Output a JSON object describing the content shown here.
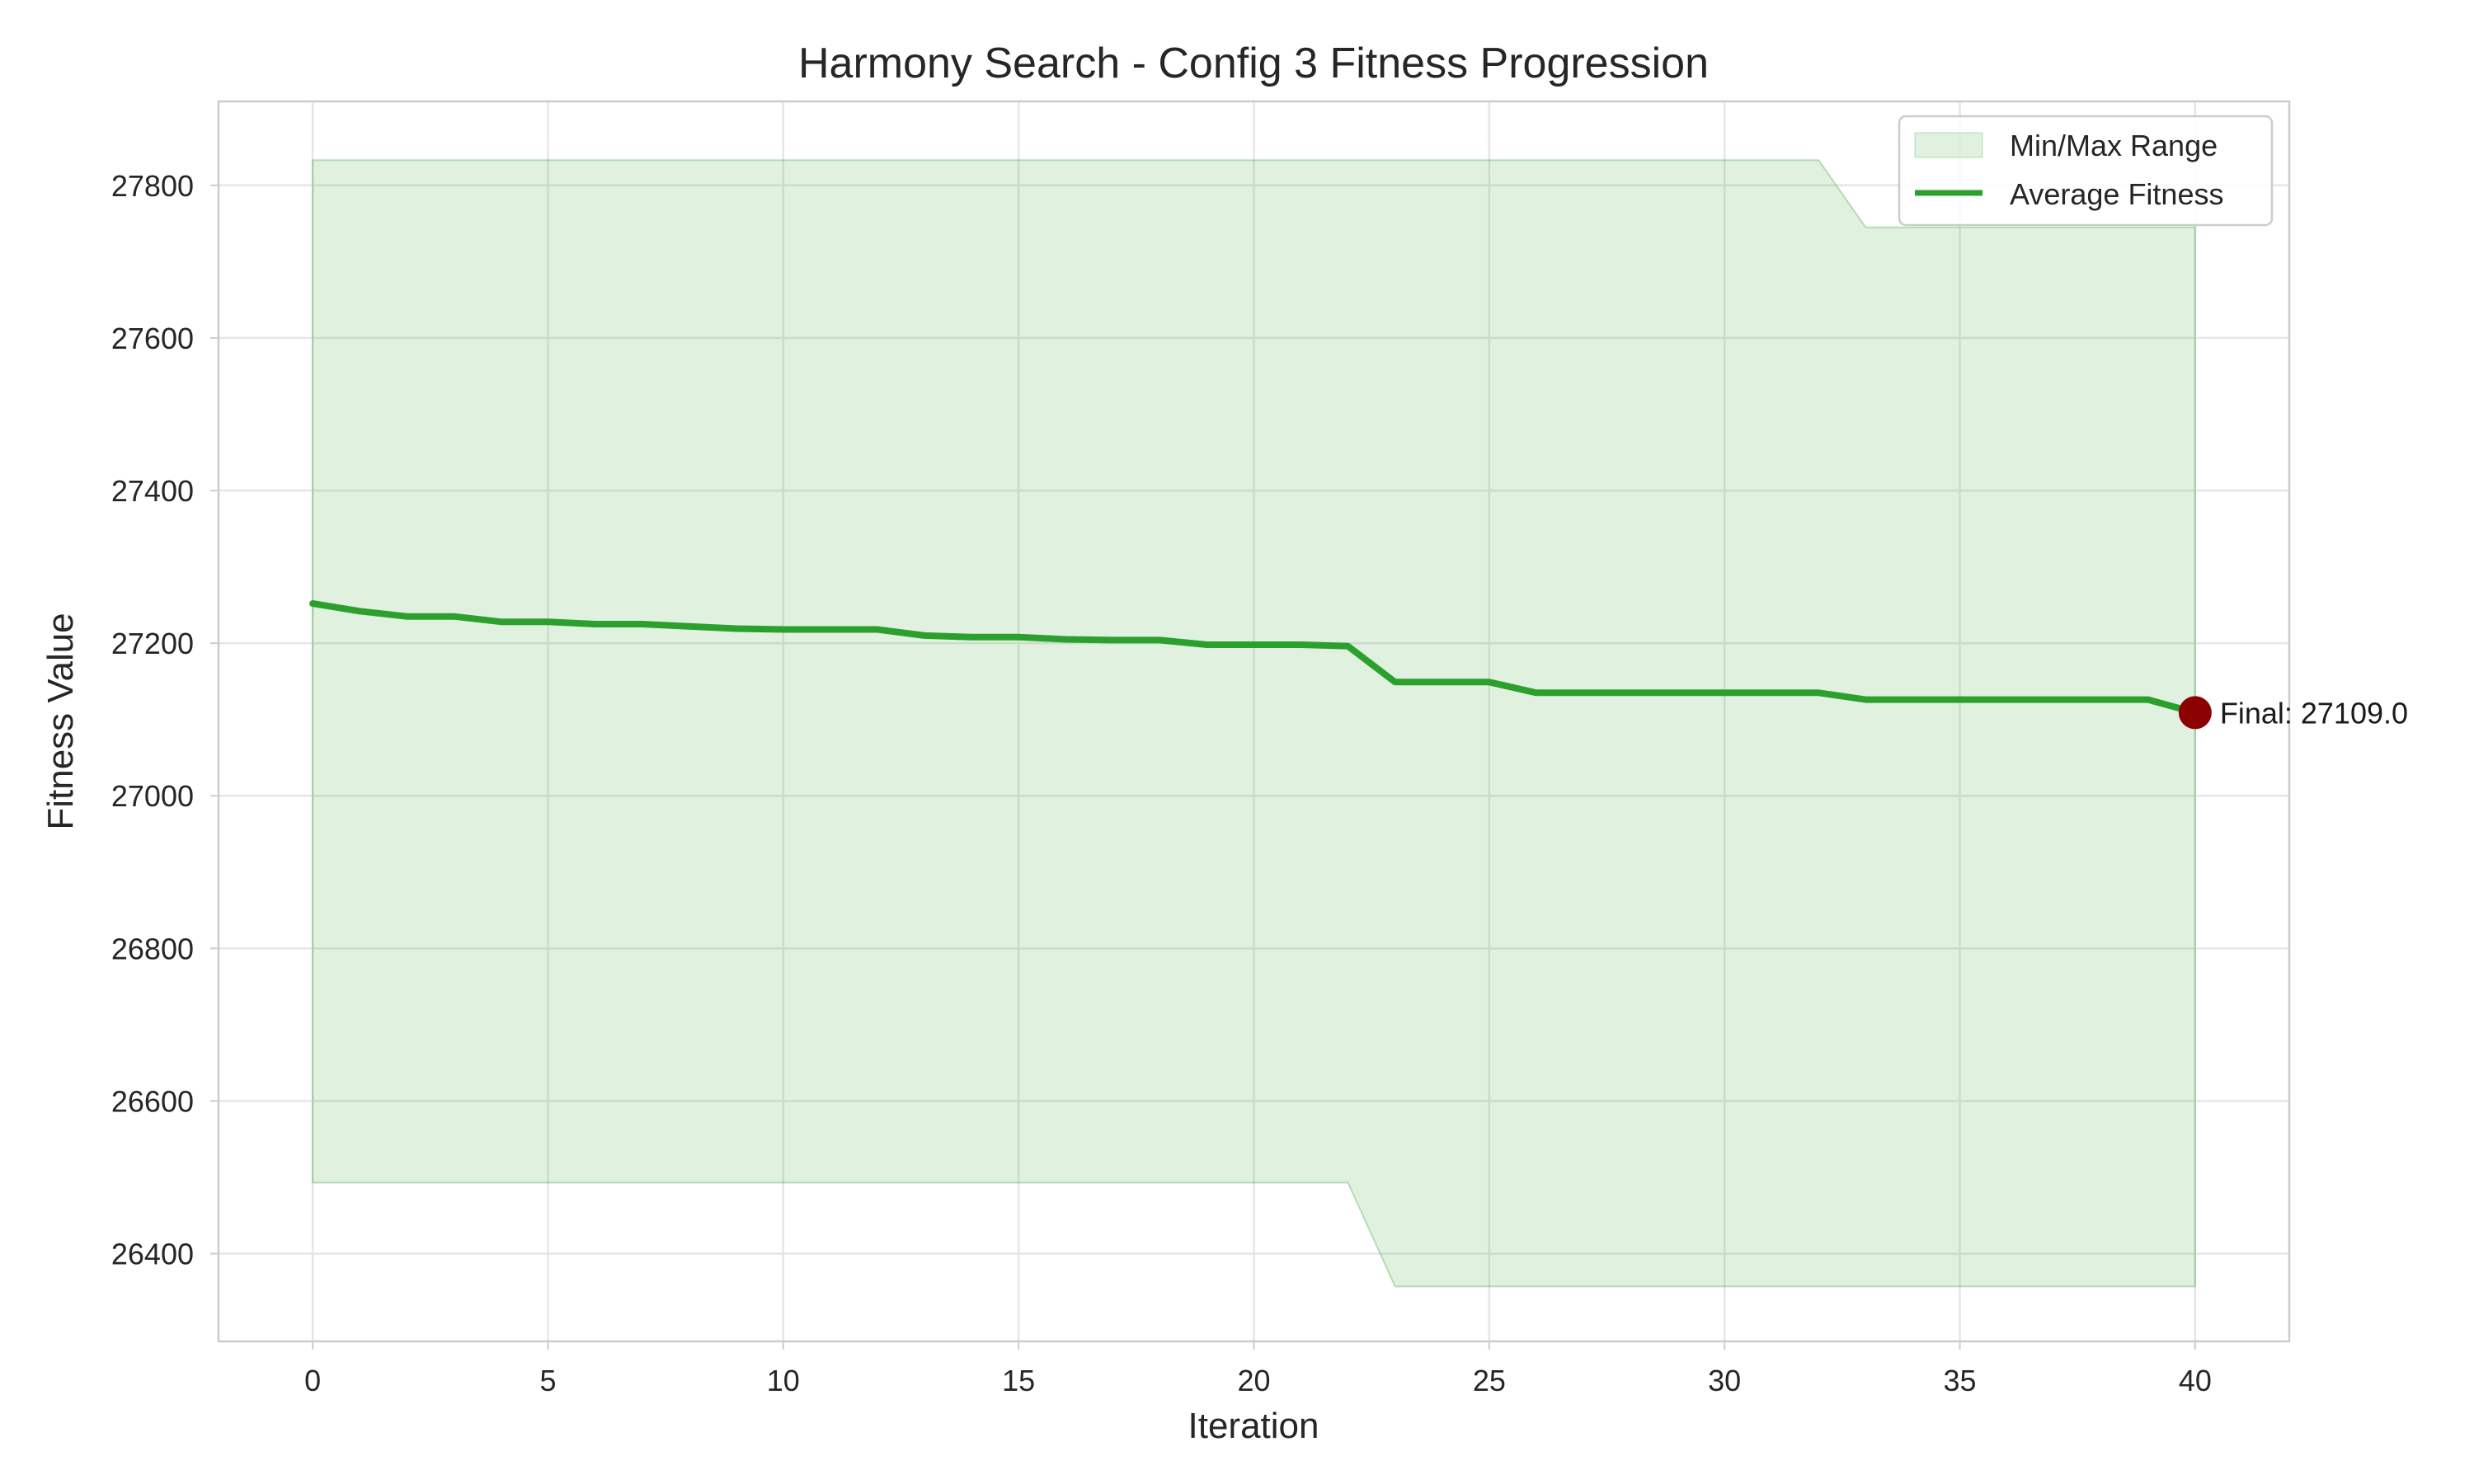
{
  "chart_data": {
    "type": "line",
    "title": "Harmony Search - Config 3 Fitness Progression",
    "xlabel": "Iteration",
    "ylabel": "Fitness Value",
    "xlim": [
      -2,
      42
    ],
    "ylim": [
      26285,
      27910
    ],
    "xticks": [
      0,
      5,
      10,
      15,
      20,
      25,
      30,
      35,
      40
    ],
    "yticks": [
      26400,
      26600,
      26800,
      27000,
      27200,
      27400,
      27600,
      27800
    ],
    "grid": true,
    "legend_position": "top-right",
    "x": [
      0,
      1,
      2,
      3,
      4,
      5,
      6,
      7,
      8,
      9,
      10,
      11,
      12,
      13,
      14,
      15,
      16,
      17,
      18,
      19,
      20,
      21,
      22,
      23,
      24,
      25,
      26,
      27,
      28,
      29,
      30,
      31,
      32,
      33,
      34,
      35,
      36,
      37,
      38,
      39,
      40
    ],
    "series": [
      {
        "name": "Min/Max Range",
        "kind": "band",
        "color": "#2ca02c",
        "opacity": 0.15,
        "min": [
          26493,
          26493,
          26493,
          26493,
          26493,
          26493,
          26493,
          26493,
          26493,
          26493,
          26493,
          26493,
          26493,
          26493,
          26493,
          26493,
          26493,
          26493,
          26493,
          26493,
          26493,
          26493,
          26493,
          26357,
          26357,
          26357,
          26357,
          26357,
          26357,
          26357,
          26357,
          26357,
          26357,
          26357,
          26357,
          26357,
          26357,
          26357,
          26357,
          26357,
          26357
        ],
        "max": [
          27833,
          27833,
          27833,
          27833,
          27833,
          27833,
          27833,
          27833,
          27833,
          27833,
          27833,
          27833,
          27833,
          27833,
          27833,
          27833,
          27833,
          27833,
          27833,
          27833,
          27833,
          27833,
          27833,
          27833,
          27833,
          27833,
          27833,
          27833,
          27833,
          27833,
          27833,
          27833,
          27833,
          27745,
          27745,
          27745,
          27745,
          27745,
          27745,
          27745,
          27745
        ]
      },
      {
        "name": "Average Fitness",
        "kind": "line",
        "color": "#2ca02c",
        "values": [
          27252,
          27242,
          27235,
          27235,
          27228,
          27228,
          27225,
          27225,
          27222,
          27219,
          27218,
          27218,
          27218,
          27210,
          27208,
          27208,
          27205,
          27204,
          27204,
          27198,
          27198,
          27198,
          27196,
          27149,
          27149,
          27149,
          27135,
          27135,
          27135,
          27135,
          27135,
          27135,
          27135,
          27126,
          27126,
          27126,
          27126,
          27126,
          27126,
          27126,
          27109
        ]
      }
    ],
    "annotation": {
      "x": 40,
      "y": 27109.0,
      "text": "Final: 27109.0",
      "marker_color": "#8b0000"
    }
  }
}
